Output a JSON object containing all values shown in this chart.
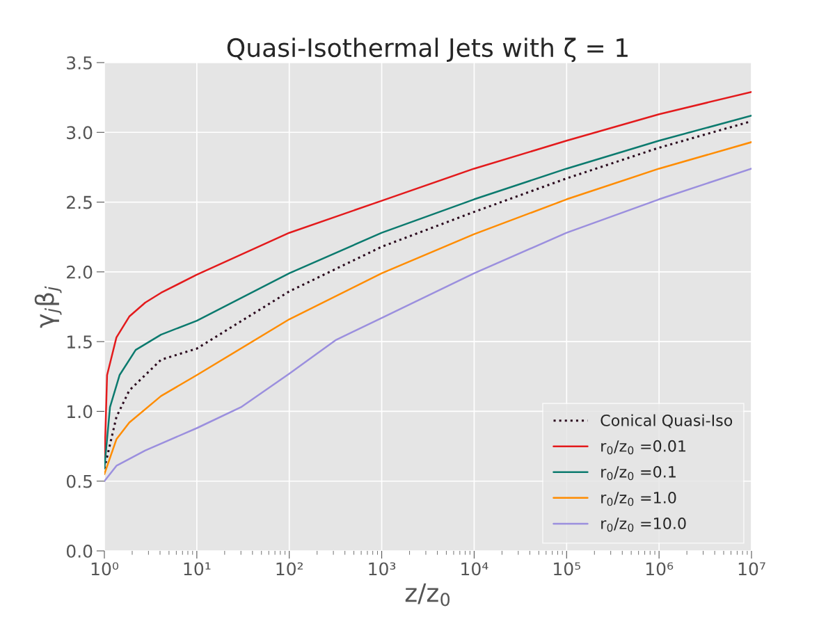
{
  "chart_data": {
    "type": "line",
    "title": "Quasi-Isothermal Jets with ζ = 1",
    "xlabel": "z/z$_{0}$",
    "ylabel": "γ$_{j}$β$_{j}$",
    "log": "x",
    "xlim": [
      1,
      10000000
    ],
    "ylim": [
      0,
      3.5
    ],
    "xticks": [
      {
        "value": 1,
        "label": "10⁰"
      },
      {
        "value": 10,
        "label": "10¹"
      },
      {
        "value": 100,
        "label": "10²"
      },
      {
        "value": 1000,
        "label": "10³"
      },
      {
        "value": 10000,
        "label": "10⁴"
      },
      {
        "value": 100000,
        "label": "10⁵"
      },
      {
        "value": 1000000,
        "label": "10⁶"
      },
      {
        "value": 10000000,
        "label": "10⁷"
      }
    ],
    "yticks": [
      {
        "value": 0,
        "label": "0.0"
      },
      0.5,
      {
        "value": 1,
        "label": "1.0"
      },
      1.5,
      {
        "value": 2,
        "label": "2.0"
      },
      2.5,
      {
        "value": 3,
        "label": "3.0"
      },
      3.5
    ],
    "grid": true,
    "legend": "bottom right",
    "marker": "none",
    "series": [
      {
        "name": "Conical Quasi-Iso",
        "color": "#2b0a1e",
        "line_style": "dotted",
        "x": [
          1,
          1.35,
          1.86,
          4.1,
          10,
          100,
          1000,
          10000,
          100000,
          1000000,
          10000000
        ],
        "values": [
          0.59,
          0.96,
          1.15,
          1.37,
          1.45,
          1.86,
          2.18,
          2.43,
          2.67,
          2.89,
          3.08
        ]
      },
      {
        "name": "r$_{0}$/z$_{0}$ =0.01",
        "color": "#e31a1c",
        "line_style": "solid",
        "x": [
          1,
          1.07,
          1.35,
          1.86,
          2.77,
          4.1,
          10,
          100,
          1000,
          10000,
          100000,
          1000000,
          10000000
        ],
        "values": [
          0.6,
          1.26,
          1.53,
          1.68,
          1.78,
          1.85,
          1.98,
          2.28,
          2.51,
          2.74,
          2.94,
          3.13,
          3.29
        ]
      },
      {
        "name": "r$_{0}$/z$_{0}$ =0.1",
        "color": "#0b7a6e",
        "line_style": "solid",
        "x": [
          1,
          1.15,
          1.46,
          2.18,
          4.1,
          10,
          100,
          1000,
          10000,
          100000,
          1000000,
          10000000
        ],
        "values": [
          0.59,
          1.03,
          1.26,
          1.44,
          1.55,
          1.65,
          1.99,
          2.28,
          2.52,
          2.74,
          2.94,
          3.12
        ]
      },
      {
        "name": "r$_{0}$/z$_{0}$ =1.0",
        "color": "#ff8c00",
        "line_style": "solid",
        "x": [
          1,
          1.35,
          1.86,
          4.1,
          10,
          100,
          1000,
          10000,
          100000,
          1000000,
          10000000
        ],
        "values": [
          0.55,
          0.8,
          0.92,
          1.11,
          1.26,
          1.66,
          1.99,
          2.27,
          2.52,
          2.74,
          2.93
        ]
      },
      {
        "name": "r$_{0}$/z$_{0}$ =10.0",
        "color": "#9b8fde",
        "line_style": "solid",
        "x": [
          1,
          1.35,
          2.77,
          10,
          30,
          100,
          316,
          1000,
          10000,
          100000,
          1000000,
          10000000
        ],
        "values": [
          0.5,
          0.61,
          0.72,
          0.88,
          1.03,
          1.27,
          1.51,
          1.67,
          1.99,
          2.28,
          2.52,
          2.74
        ]
      }
    ]
  }
}
